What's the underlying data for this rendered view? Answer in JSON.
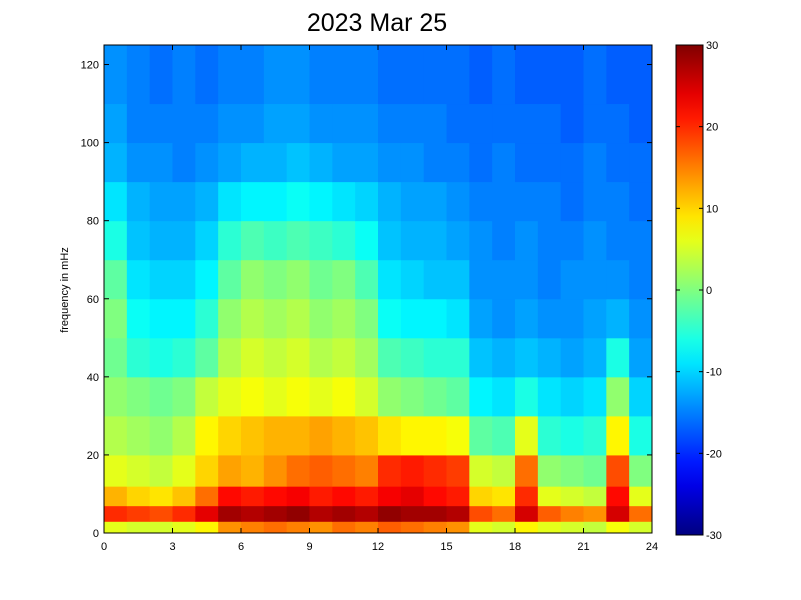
{
  "chart_data": {
    "type": "heatmap",
    "title": "2023 Mar 25",
    "y_label": "frequency in mHz",
    "x_edges": [
      0,
      1,
      2,
      3,
      4,
      5,
      6,
      7,
      8,
      9,
      10,
      11,
      12,
      13,
      14,
      15,
      16,
      17,
      18,
      19,
      20,
      21,
      22,
      23,
      24
    ],
    "y_edges": [
      0,
      3,
      7,
      12,
      20,
      30,
      40,
      50,
      60,
      70,
      80,
      90,
      100,
      110,
      125
    ],
    "xlim": [
      0,
      24
    ],
    "xticks": [
      0,
      3,
      6,
      9,
      12,
      15,
      18,
      21,
      24
    ],
    "ylim": [
      0,
      125
    ],
    "yticks": [
      0,
      20,
      40,
      60,
      80,
      100,
      120
    ],
    "colormap": "jet",
    "clim": [
      -30,
      30
    ],
    "cticks": [
      -30,
      -20,
      -10,
      0,
      10,
      20,
      30
    ],
    "values": [
      [
        6,
        5,
        5,
        6,
        8,
        14,
        15,
        16,
        15,
        14,
        16,
        15,
        17,
        16,
        15,
        14,
        6,
        5,
        8,
        6,
        5,
        4,
        7,
        5
      ],
      [
        20,
        19,
        18,
        20,
        24,
        28,
        27,
        28,
        29,
        27,
        28,
        27,
        29,
        28,
        28,
        27,
        18,
        16,
        25,
        17,
        15,
        14,
        25,
        16
      ],
      [
        12,
        10,
        9,
        11,
        16,
        22,
        21,
        22,
        23,
        21,
        22,
        21,
        23,
        24,
        22,
        21,
        10,
        9,
        20,
        6,
        5,
        4,
        22,
        6
      ],
      [
        6,
        5,
        4,
        6,
        10,
        13,
        12,
        14,
        16,
        17,
        16,
        15,
        20,
        21,
        20,
        19,
        5,
        4,
        16,
        1,
        0,
        -1,
        18,
        0
      ],
      [
        3,
        2,
        1,
        3,
        8,
        10,
        11,
        12,
        12,
        13,
        12,
        11,
        9,
        8,
        8,
        7,
        -2,
        -3,
        6,
        -5,
        -6,
        -5,
        8,
        -6
      ],
      [
        1,
        0,
        -1,
        0,
        4,
        6,
        7,
        6,
        7,
        6,
        7,
        5,
        1,
        0,
        -1,
        -2,
        -8,
        -9,
        -6,
        -9,
        -10,
        -9,
        1,
        -10
      ],
      [
        -1,
        -5,
        -6,
        -5,
        -2,
        3,
        5,
        4,
        5,
        3,
        4,
        2,
        -3,
        -4,
        -5,
        -5,
        -11,
        -12,
        -11,
        -12,
        -13,
        -12,
        -6,
        -13
      ],
      [
        0,
        -7,
        -8,
        -8,
        -5,
        1,
        3,
        2,
        3,
        1,
        2,
        0,
        -7,
        -8,
        -8,
        -9,
        -13,
        -14,
        -13,
        -14,
        -14,
        -13,
        -12,
        -14
      ],
      [
        -2,
        -9,
        -10,
        -10,
        -8,
        -2,
        1,
        0,
        1,
        -1,
        0,
        -3,
        -9,
        -10,
        -11,
        -11,
        -14,
        -14,
        -14,
        -15,
        -14,
        -14,
        -14,
        -15
      ],
      [
        -6,
        -11,
        -12,
        -12,
        -10,
        -5,
        -3,
        -4,
        -3,
        -4,
        -5,
        -7,
        -11,
        -12,
        -12,
        -13,
        -14,
        -15,
        -14,
        -15,
        -15,
        -14,
        -15,
        -15
      ],
      [
        -9,
        -12,
        -13,
        -13,
        -12,
        -9,
        -8,
        -8,
        -7,
        -8,
        -9,
        -10,
        -12,
        -13,
        -13,
        -14,
        -15,
        -15,
        -15,
        -15,
        -16,
        -15,
        -15,
        -16
      ],
      [
        -12,
        -14,
        -14,
        -15,
        -14,
        -13,
        -12,
        -12,
        -11,
        -12,
        -13,
        -13,
        -14,
        -14,
        -15,
        -15,
        -16,
        -15,
        -16,
        -16,
        -16,
        -15,
        -16,
        -16
      ],
      [
        -13,
        -15,
        -15,
        -15,
        -15,
        -14,
        -14,
        -13,
        -13,
        -14,
        -14,
        -14,
        -15,
        -15,
        -15,
        -16,
        -16,
        -16,
        -16,
        -16,
        -17,
        -16,
        -16,
        -17
      ],
      [
        -14,
        -15,
        -16,
        -15,
        -16,
        -15,
        -15,
        -14,
        -14,
        -15,
        -15,
        -15,
        -16,
        -16,
        -16,
        -16,
        -17,
        -16,
        -17,
        -17,
        -17,
        -16,
        -17,
        -17
      ]
    ]
  }
}
